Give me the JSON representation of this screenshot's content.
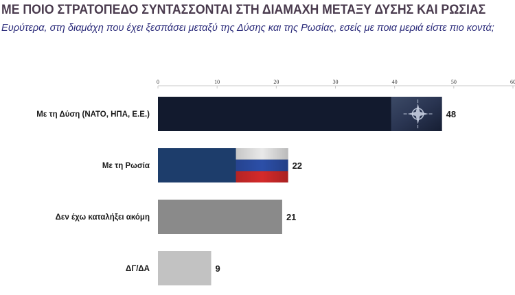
{
  "title": "ΜΕ ΠΟΙΟ ΣΤΡΑΤΟΠΕΔΟ ΣΥΝΤΑΣΣΟΝΤΑΙ ΣΤΗ ΔΙΑΜΑΧΗ ΜΕΤΑΞΥ ΔΥΣΗΣ ΚΑΙ ΡΩΣΙΑΣ",
  "subtitle": "Ευρύτερα, στη διαμάχη που έχει ξεσπάσει μεταξύ της Δύσης και της Ρωσίας, εσείς με ποια μεριά είστε πιο κοντά;",
  "chart_data": {
    "type": "bar",
    "orientation": "horizontal",
    "categories": [
      "Με τη Δύση (ΝΑΤΟ, ΗΠΑ, Ε.Ε.)",
      "Με τη Ρωσία",
      "Δεν έχω καταλήξει ακόμη",
      "ΔΓ/ΔΑ"
    ],
    "values": [
      48,
      22,
      21,
      9
    ],
    "data_labels": [
      "48",
      "22",
      "21",
      "9"
    ],
    "xlim": [
      0,
      60
    ],
    "x_ticks": [
      "0",
      "10",
      "20",
      "30",
      "40",
      "50",
      "60"
    ],
    "bar_colors": [
      "#121a2e",
      "#1d3d6b",
      "#8a8a8a",
      "#c2c2c2"
    ],
    "bar_images": [
      "nato-flag",
      "russia-flag",
      "",
      ""
    ],
    "grid": false,
    "axis_position": "top"
  }
}
